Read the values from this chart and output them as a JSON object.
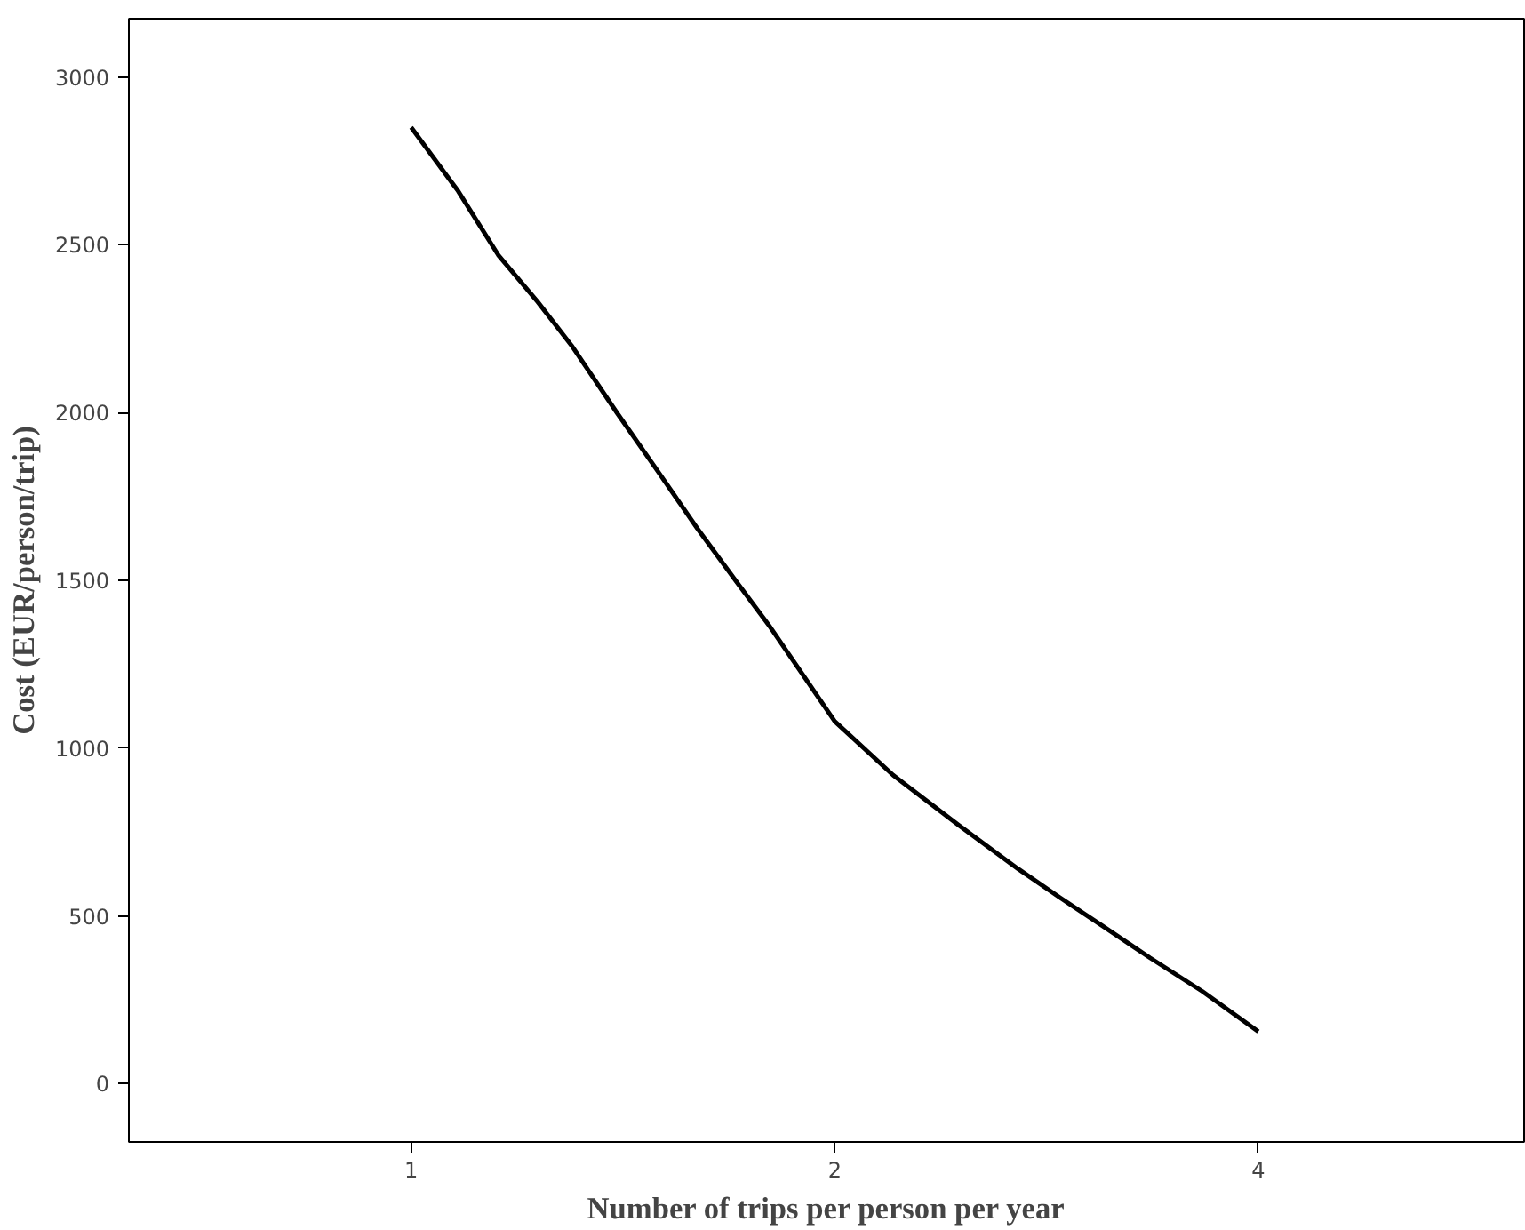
{
  "chart_data": {
    "type": "line",
    "xlabel": "Number of trips per person per year",
    "ylabel": "Cost (EUR/person/trip)",
    "log": "x",
    "x": [
      1,
      1.08,
      1.153,
      1.23,
      1.3,
      1.4,
      1.5,
      1.597,
      1.7,
      1.8,
      2,
      2.2,
      2.45,
      2.7,
      2.89,
      3.1,
      3.35,
      3.65,
      4
    ],
    "series": [
      {
        "color": "#000000",
        "values": [
          2850,
          2660,
          2470,
          2330,
          2200,
          2000,
          1820,
          1655,
          1500,
          1360,
          1080,
          920,
          770,
          640,
          555,
          470,
          375,
          275,
          155
        ]
      }
    ],
    "xlim": [
      0.63,
      6.18
    ],
    "ylim": [
      -174,
      3174
    ],
    "xticks": [
      1,
      2,
      4
    ],
    "yticks": [
      0,
      500,
      1000,
      1500,
      2000,
      2500,
      3000
    ],
    "grid": false,
    "marker": "none",
    "line_style": "solid"
  }
}
